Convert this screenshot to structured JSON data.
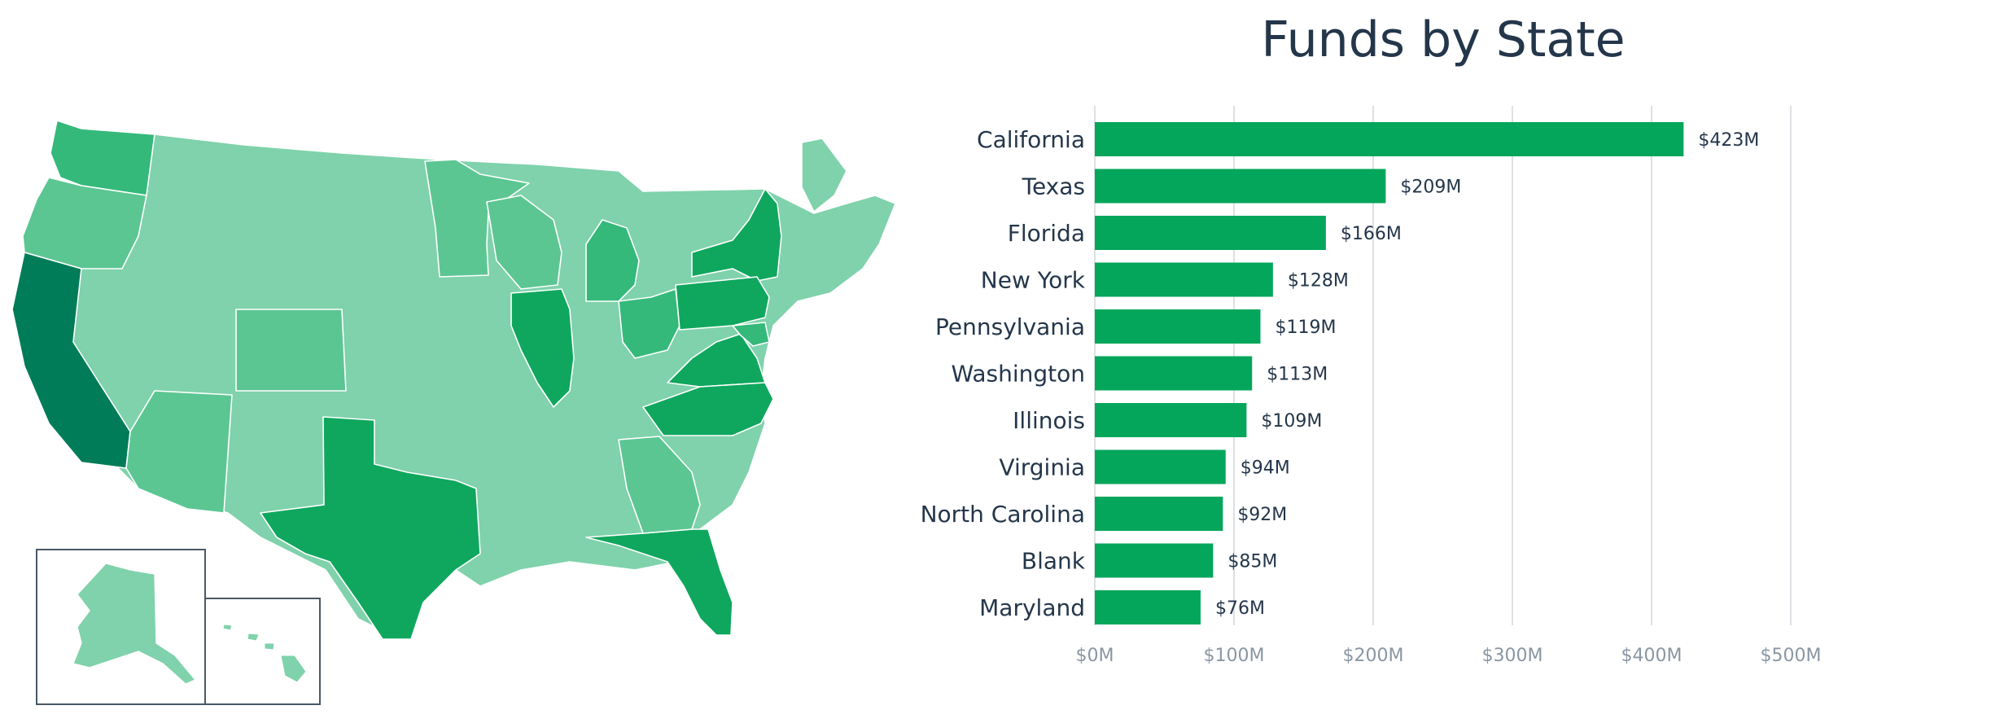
{
  "colors": {
    "bar": "#03a65b",
    "label_text": "#24364a",
    "tick_text": "#8a96a3",
    "grid": "#d2d7dc",
    "map_darkest": "#017c58",
    "map_dark": "#0fa75e",
    "map_mid": "#34b97a",
    "map_medium": "#5cc693",
    "map_light": "#7fd2ab",
    "map_border": "#ffffff",
    "inset_border": "#4a5866"
  },
  "map": {
    "highlighted_states": [
      "California",
      "Texas",
      "Florida",
      "New York",
      "Pennsylvania",
      "Washington",
      "Illinois",
      "Virginia",
      "North Carolina",
      "Maryland"
    ]
  },
  "chart_data": {
    "type": "bar",
    "orientation": "horizontal",
    "title": "Funds by State",
    "xlabel": "",
    "ylabel": "",
    "categories": [
      "California",
      "Texas",
      "Florida",
      "New York",
      "Pennsylvania",
      "Washington",
      "Illinois",
      "Virginia",
      "North Carolina",
      "Blank",
      "Maryland"
    ],
    "values": [
      423,
      209,
      166,
      128,
      119,
      113,
      109,
      94,
      92,
      85,
      76
    ],
    "value_labels": [
      "$423M",
      "$209M",
      "$166M",
      "$128M",
      "$119M",
      "$113M",
      "$109M",
      "$94M",
      "$92M",
      "$85M",
      "$76M"
    ],
    "xlim": [
      0,
      500
    ],
    "xticks": [
      0,
      100,
      200,
      300,
      400,
      500
    ],
    "xtick_labels": [
      "$0M",
      "$100M",
      "$200M",
      "$300M",
      "$400M",
      "$500M"
    ],
    "grid": true,
    "legend": "none"
  }
}
